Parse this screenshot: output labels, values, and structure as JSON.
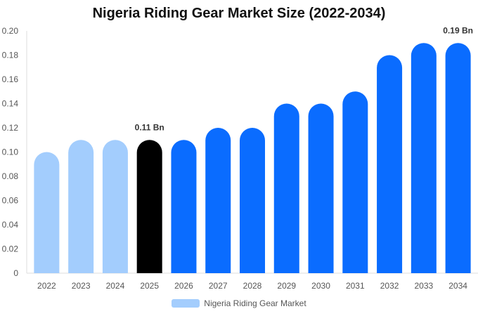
{
  "chart_data": {
    "type": "bar",
    "title": "Nigeria Riding Gear Market Size (2022-2034)",
    "xlabel": "",
    "ylabel": "",
    "ylim": [
      0,
      0.2
    ],
    "yticks": [
      "0",
      "0.02",
      "0.04",
      "0.06",
      "0.08",
      "0.10",
      "0.12",
      "0.14",
      "0.16",
      "0.18",
      "0.20"
    ],
    "grid": false,
    "legend_position": "bottom",
    "categories": [
      "2022",
      "2023",
      "2024",
      "2025",
      "2026",
      "2027",
      "2028",
      "2029",
      "2030",
      "2031",
      "2032",
      "2033",
      "2034"
    ],
    "series": [
      {
        "name": "Nigeria Riding Gear Market",
        "values": [
          0.1,
          0.11,
          0.11,
          0.11,
          0.11,
          0.12,
          0.12,
          0.14,
          0.14,
          0.15,
          0.18,
          0.19,
          0.19
        ]
      }
    ],
    "annotations": [
      {
        "category": "2025",
        "text": "0.11 Bn"
      },
      {
        "category": "2034",
        "text": "0.19 Bn"
      }
    ],
    "colors": {
      "historical": "#a3cdfd",
      "current": "#000000",
      "forecast": "#0a6cff",
      "legend": "#a3cdfd"
    },
    "bar_color_groups": [
      "historical",
      "historical",
      "historical",
      "current",
      "forecast",
      "forecast",
      "forecast",
      "forecast",
      "forecast",
      "forecast",
      "forecast",
      "forecast",
      "forecast"
    ]
  }
}
